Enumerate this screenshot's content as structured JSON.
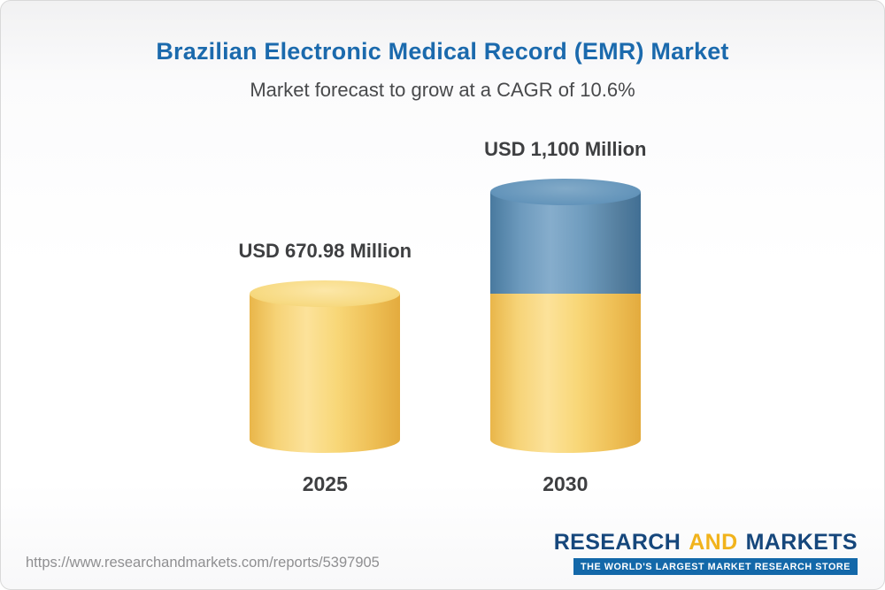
{
  "header": {
    "title": "Brazilian Electronic Medical Record (EMR) Market",
    "subtitle": "Market forecast to grow at a CAGR of 10.6%"
  },
  "chart_data": {
    "type": "bar",
    "style": "3d-cylinder",
    "categories": [
      "2025",
      "2030"
    ],
    "values": [
      670.98,
      1100
    ],
    "value_labels": [
      "USD 670.98 Million",
      "USD 1,100 Million"
    ],
    "unit": "USD Million",
    "ylim": [
      0,
      1100
    ],
    "grid": false,
    "legend": "none",
    "colors": {
      "base_segment": "#f3cd62",
      "growth_segment": "#5d8cb5",
      "title_accent": "#1b6aad"
    },
    "notes": "2030 cylinder is stacked: yellow lower segment equals 2025 value, blue upper segment is growth to 1,100"
  },
  "footer": {
    "url": "https://www.researchandmarkets.com/reports/5397905",
    "logo": {
      "word1": "RESEARCH",
      "word2": "AND",
      "word3": "MARKETS",
      "tagline": "THE WORLD'S LARGEST MARKET RESEARCH STORE"
    }
  }
}
